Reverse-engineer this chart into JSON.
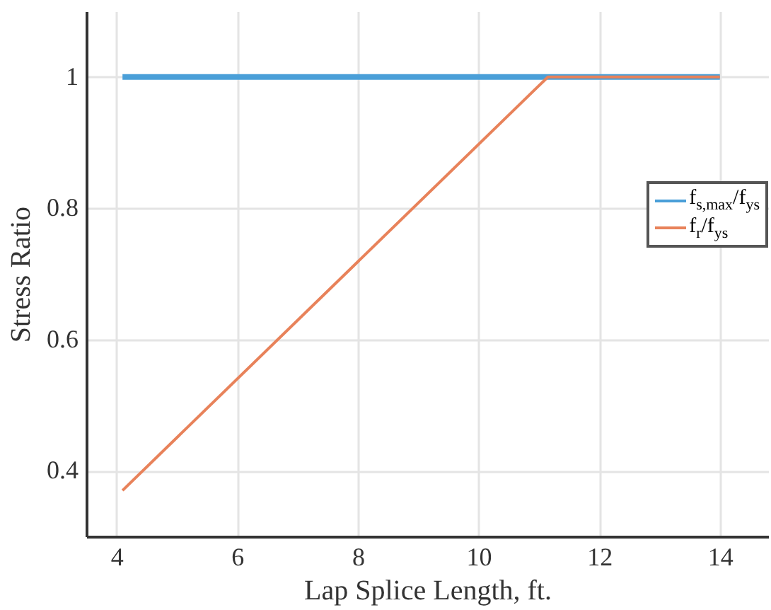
{
  "chart_data": {
    "type": "line",
    "xlabel": "Lap Splice Length, ft.",
    "ylabel": "Stress Ratio",
    "xlim": [
      3.5,
      14.8
    ],
    "xticks": [
      4,
      6,
      8,
      10,
      12,
      14
    ],
    "ylim": [
      0.3,
      1.1
    ],
    "yticks": [
      0.4,
      0.6,
      0.8,
      1
    ],
    "grid": true,
    "legend": "right",
    "line_style": "solid",
    "marker": "none",
    "series": [
      {
        "name": "f$_{s,max}$/f$_{ys}$",
        "color": "#4a9fd8",
        "x": [
          4.1,
          14
        ],
        "values": [
          1,
          1
        ]
      },
      {
        "name": "f$_{r}$/f$_{ys}$",
        "color": "#e8825a",
        "x": [
          4.1,
          11.15,
          14
        ],
        "values": [
          0.37,
          1,
          1
        ]
      }
    ]
  }
}
